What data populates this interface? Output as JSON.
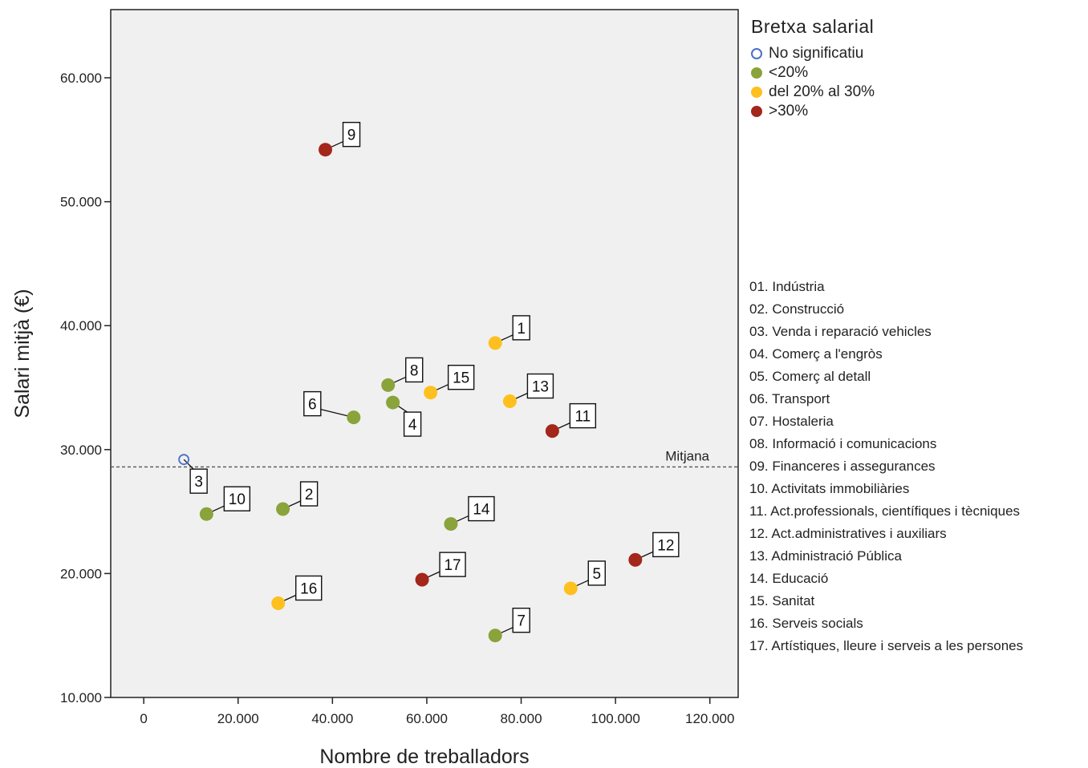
{
  "chart_data": {
    "type": "scatter",
    "xlabel": "Nombre de treballadors",
    "ylabel": "Salari mitjà (€)",
    "xlim": [
      -7000,
      126000
    ],
    "ylim": [
      10000,
      65500
    ],
    "xticks": [
      0,
      20000,
      40000,
      60000,
      80000,
      100000,
      120000
    ],
    "xtick_labels": [
      "0",
      "20.000",
      "40.000",
      "60.000",
      "80.000",
      "100.000",
      "120.000"
    ],
    "yticks": [
      10000,
      20000,
      30000,
      40000,
      50000,
      60000
    ],
    "ytick_labels": [
      "10.000",
      "20.000",
      "30.000",
      "40.000",
      "50.000",
      "60.000"
    ],
    "grid": false,
    "background": "#f0f0f0",
    "reference_line": {
      "y": 28600,
      "label": "Mitjana",
      "style": "dashed"
    },
    "legend": {
      "title": "Bretxa salarial",
      "placement": "right",
      "entries": [
        {
          "key": "ns",
          "label": "No significatiu",
          "color": "#4a6fc9",
          "hollow": true
        },
        {
          "key": "lt20",
          "label": "<20%",
          "color": "#8aa33a",
          "hollow": false
        },
        {
          "key": "b20_30",
          "label": "del 20% al 30%",
          "color": "#fdc01e",
          "hollow": false
        },
        {
          "key": "gt30",
          "label": ">30%",
          "color": "#a3271a",
          "hollow": false
        }
      ]
    },
    "points": [
      {
        "label": "1",
        "x": 74500,
        "y": 38600,
        "group": "b20_30",
        "lpos": "ne"
      },
      {
        "label": "2",
        "x": 29500,
        "y": 25200,
        "group": "lt20",
        "lpos": "ne"
      },
      {
        "label": "3",
        "x": 8500,
        "y": 29200,
        "group": "ns",
        "lpos": "s"
      },
      {
        "label": "4",
        "x": 52800,
        "y": 33800,
        "group": "lt20",
        "lpos": "se"
      },
      {
        "label": "5",
        "x": 90500,
        "y": 18800,
        "group": "b20_30",
        "lpos": "ne"
      },
      {
        "label": "6",
        "x": 44500,
        "y": 32600,
        "group": "lt20",
        "lpos": "w"
      },
      {
        "label": "7",
        "x": 74500,
        "y": 15000,
        "group": "lt20",
        "lpos": "ne"
      },
      {
        "label": "8",
        "x": 51800,
        "y": 35200,
        "group": "lt20",
        "lpos": "ne"
      },
      {
        "label": "9",
        "x": 38500,
        "y": 54200,
        "group": "gt30",
        "lpos": "ne"
      },
      {
        "label": "10",
        "x": 13300,
        "y": 24800,
        "group": "lt20",
        "lpos": "ne"
      },
      {
        "label": "11",
        "x": 86600,
        "y": 31500,
        "group": "gt30",
        "lpos": "ne"
      },
      {
        "label": "12",
        "x": 104200,
        "y": 21100,
        "group": "gt30",
        "lpos": "ne"
      },
      {
        "label": "13",
        "x": 77600,
        "y": 33900,
        "group": "b20_30",
        "lpos": "ne"
      },
      {
        "label": "14",
        "x": 65100,
        "y": 24000,
        "group": "lt20",
        "lpos": "ne"
      },
      {
        "label": "15",
        "x": 60800,
        "y": 34600,
        "group": "b20_30",
        "lpos": "ne"
      },
      {
        "label": "16",
        "x": 28500,
        "y": 17600,
        "group": "b20_30",
        "lpos": "ne"
      },
      {
        "label": "17",
        "x": 59000,
        "y": 19500,
        "group": "gt30",
        "lpos": "ne"
      }
    ]
  },
  "sectors": [
    "01. Indústria",
    "02. Construcció",
    "03. Venda i reparació vehicles",
    "04. Comerç a l'engròs",
    "05. Comerç al detall",
    "06. Transport",
    "07. Hostaleria",
    "08. Informació i comunicacions",
    "09. Financeres i assegurances",
    "10. Activitats immobiliàries",
    "11. Act.professionals, científiques i tècniques",
    "12. Act.administratives i auxiliars",
    "13. Administració Pública",
    "14. Educació",
    "15. Sanitat",
    "16. Serveis socials",
    "17. Artístiques, lleure i serveis a les persones"
  ]
}
